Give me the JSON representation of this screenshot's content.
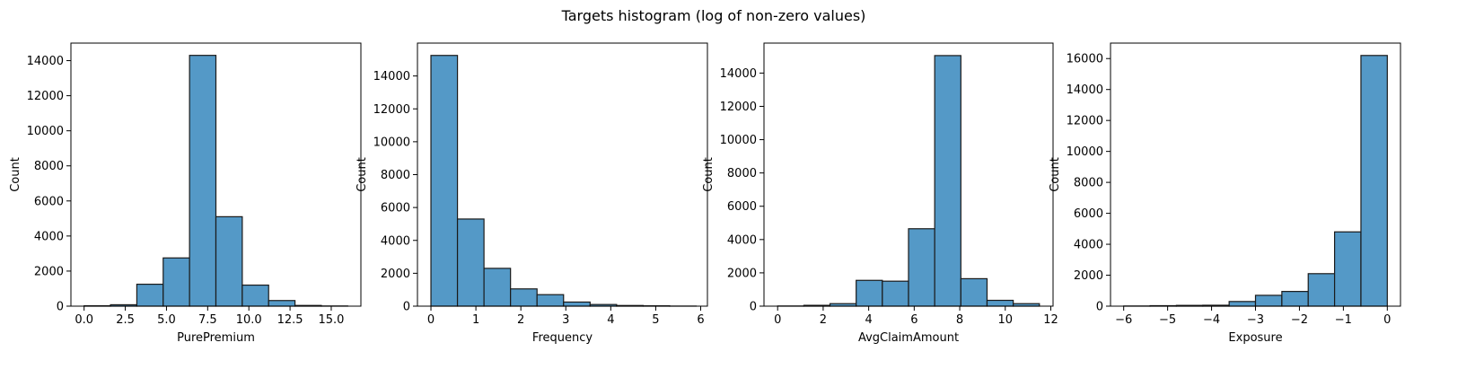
{
  "suptitle": "Targets histogram (log of non-zero values)",
  "colors": {
    "bar_fill": "#5499c7",
    "bar_edge": "#1a1a1a"
  },
  "chart_data": [
    {
      "type": "bar",
      "xlabel": "PurePremium",
      "ylabel": "Count",
      "xlim": [
        -0.8,
        16.8
      ],
      "ylim": [
        0,
        15000
      ],
      "xticks": [
        0.0,
        2.5,
        5.0,
        7.5,
        10.0,
        12.5,
        15.0
      ],
      "xtick_labels": [
        "0.0",
        "2.5",
        "5.0",
        "7.5",
        "10.0",
        "12.5",
        "15.0"
      ],
      "yticks": [
        0,
        2000,
        4000,
        6000,
        8000,
        10000,
        12000,
        14000
      ],
      "bin_edges": [
        0.0,
        1.6,
        3.2,
        4.8,
        6.4,
        8.0,
        9.6,
        11.2,
        12.8,
        14.4,
        16.0
      ],
      "values": [
        20,
        80,
        1250,
        2750,
        14300,
        5100,
        1200,
        320,
        40,
        10
      ]
    },
    {
      "type": "bar",
      "xlabel": "Frequency",
      "ylabel": "Count",
      "xlim": [
        -0.3,
        6.15
      ],
      "ylim": [
        0,
        16000
      ],
      "xticks": [
        0,
        1,
        2,
        3,
        4,
        5,
        6
      ],
      "xtick_labels": [
        "0",
        "1",
        "2",
        "3",
        "4",
        "5",
        "6"
      ],
      "yticks": [
        0,
        2000,
        4000,
        6000,
        8000,
        10000,
        12000,
        14000
      ],
      "bin_edges": [
        0.0,
        0.59,
        1.18,
        1.77,
        2.36,
        2.95,
        3.54,
        4.13,
        4.72,
        5.31,
        5.9
      ],
      "values": [
        15250,
        5300,
        2300,
        1050,
        700,
        250,
        100,
        40,
        20,
        5
      ]
    },
    {
      "type": "bar",
      "xlabel": "AvgClaimAmount",
      "ylabel": "Count",
      "xlim": [
        -0.6,
        12.1
      ],
      "ylim": [
        0,
        15800
      ],
      "xticks": [
        0,
        2,
        4,
        6,
        8,
        10,
        12
      ],
      "xtick_labels": [
        "0",
        "2",
        "4",
        "6",
        "8",
        "10",
        "12"
      ],
      "yticks": [
        0,
        2000,
        4000,
        6000,
        8000,
        10000,
        12000,
        14000
      ],
      "bin_edges": [
        0.0,
        1.15,
        2.3,
        3.45,
        4.6,
        5.75,
        6.9,
        8.05,
        9.2,
        10.35,
        11.5
      ],
      "values": [
        10,
        50,
        150,
        1550,
        1500,
        4650,
        15050,
        1650,
        350,
        150
      ]
    },
    {
      "type": "bar",
      "xlabel": "Exposure",
      "ylabel": "Count",
      "xlim": [
        -6.3,
        0.3
      ],
      "ylim": [
        0,
        17000
      ],
      "xticks": [
        -6,
        -5,
        -4,
        -3,
        -2,
        -1,
        0
      ],
      "xtick_labels": [
        "−6",
        "−5",
        "−4",
        "−3",
        "−2",
        "−1",
        "0"
      ],
      "yticks": [
        0,
        2000,
        4000,
        6000,
        8000,
        10000,
        12000,
        14000,
        16000
      ],
      "bin_edges": [
        -6.0,
        -5.4,
        -4.8,
        -4.2,
        -3.6,
        -3.0,
        -2.4,
        -1.8,
        -1.2,
        -0.6,
        0.0
      ],
      "values": [
        10,
        30,
        50,
        60,
        300,
        700,
        950,
        2100,
        4800,
        16200
      ]
    }
  ]
}
